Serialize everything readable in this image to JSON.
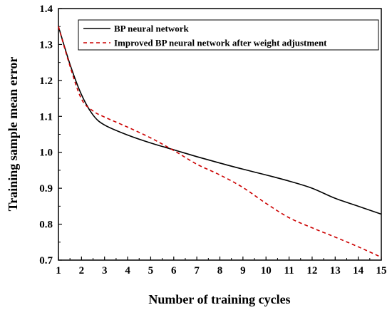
{
  "chart_data": {
    "type": "line",
    "xlabel": "Number of training cycles",
    "ylabel": "Training sample mean error",
    "xlim": [
      1,
      15
    ],
    "ylim": [
      0.7,
      1.4
    ],
    "xticks": [
      1,
      2,
      3,
      4,
      5,
      6,
      7,
      8,
      9,
      10,
      11,
      12,
      13,
      14,
      15
    ],
    "yticks": [
      "0.7",
      "0.8",
      "0.9",
      "1.0",
      "1.1",
      "1.2",
      "1.3",
      "1.4"
    ],
    "grid": false,
    "legend_position": "top-right",
    "series": [
      {
        "name": "BP neural network",
        "color": "#000000",
        "style": "solid",
        "x": [
          1,
          1.5,
          2,
          2.5,
          3,
          4,
          5,
          6,
          7,
          8,
          9,
          10,
          11,
          12,
          13,
          14,
          15
        ],
        "y": [
          1.35,
          1.245,
          1.16,
          1.104,
          1.076,
          1.048,
          1.026,
          1.007,
          0.988,
          0.97,
          0.953,
          0.937,
          0.92,
          0.9,
          0.872,
          0.85,
          0.828
        ]
      },
      {
        "name": "Improved BP neural network after weight adjustment",
        "color": "#cc0000",
        "style": "dashed",
        "x": [
          1,
          1.5,
          2,
          2.5,
          3,
          4,
          5,
          6,
          7,
          8,
          9,
          10,
          11,
          12,
          13,
          14,
          15
        ],
        "y": [
          1.35,
          1.24,
          1.148,
          1.115,
          1.098,
          1.07,
          1.04,
          1.005,
          0.967,
          0.937,
          0.902,
          0.858,
          0.818,
          0.79,
          0.764,
          0.737,
          0.708
        ]
      }
    ]
  }
}
